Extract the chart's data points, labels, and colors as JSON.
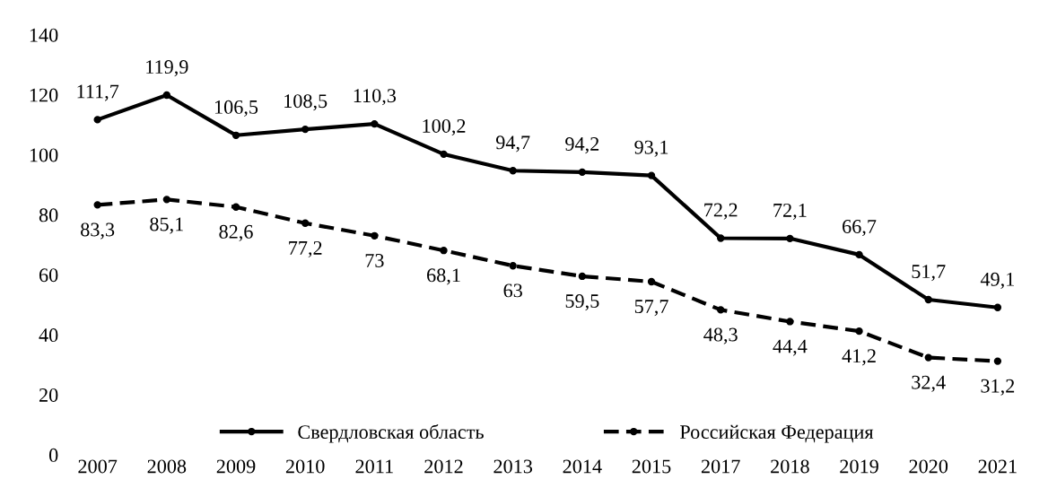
{
  "chart_data": {
    "type": "line",
    "categories": [
      "2007",
      "2008",
      "2009",
      "2010",
      "2011",
      "2012",
      "2013",
      "2014",
      "2015",
      "2017",
      "2018",
      "2019",
      "2020",
      "2021"
    ],
    "series": [
      {
        "name": "Свердловская область",
        "color": "#000000",
        "line_style": "solid",
        "values": [
          111.7,
          119.9,
          106.5,
          108.5,
          110.3,
          100.2,
          94.7,
          94.2,
          93.1,
          72.2,
          72.1,
          66.7,
          51.7,
          49.1
        ],
        "value_labels": [
          "111,7",
          "119,9",
          "106,5",
          "108,5",
          "110,3",
          "100,2",
          "94,7",
          "94,2",
          "93,1",
          "72,2",
          "72,1",
          "66,7",
          "51,7",
          "49,1"
        ]
      },
      {
        "name": "Российская Федерация",
        "color": "#000000",
        "line_style": "dashed",
        "values": [
          83.3,
          85.1,
          82.6,
          77.2,
          73,
          68.1,
          63,
          59.5,
          57.7,
          48.3,
          44.4,
          41.2,
          32.4,
          31.2
        ],
        "value_labels": [
          "83,3",
          "85,1",
          "82,6",
          "77,2",
          "73",
          "68,1",
          "63",
          "59,5",
          "57,7",
          "48,3",
          "44,4",
          "41,2",
          "32,4",
          "31,2"
        ]
      }
    ],
    "ylim": [
      0,
      140
    ],
    "yticks": [
      0,
      20,
      40,
      60,
      80,
      100,
      120,
      140
    ],
    "marker": "circle",
    "grid": false,
    "legend": "bottom"
  }
}
